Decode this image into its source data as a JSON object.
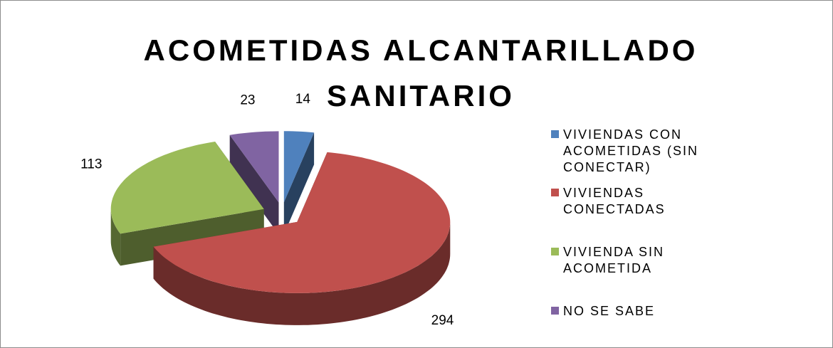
{
  "chart_data": {
    "type": "pie3d",
    "title": "ACOMETIDAS ALCANTARILLADO SANITARIO",
    "categories": [
      "VIVIENDAS CON ACOMETIDAS (SIN CONECTAR)",
      "VIVIENDAS CONECTADAS",
      "VIVIENDA SIN ACOMETIDA",
      "NO SE SABE"
    ],
    "values": [
      14,
      294,
      113,
      23
    ],
    "colors": [
      "#4f81bd",
      "#c0504d",
      "#9bbb59",
      "#8064a2"
    ],
    "legend": "right"
  }
}
